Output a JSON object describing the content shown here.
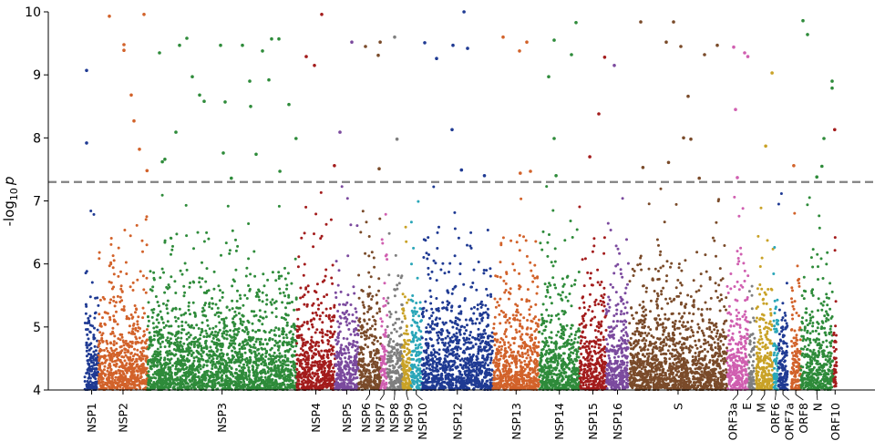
{
  "chart_data": {
    "type": "scatter",
    "title": "",
    "xlabel": "",
    "ylabel": {
      "prefix": "-log",
      "sub": "10",
      "var": "p"
    },
    "xlim": [
      -1160,
      31175
    ],
    "ylim": [
      4,
      10
    ],
    "yticks": [
      "4",
      "5",
      "6",
      "7",
      "8",
      "9",
      "10"
    ],
    "grid": false,
    "legend": "none",
    "threshold": {
      "value": 7.3,
      "style": "dashed",
      "color": "#808080"
    },
    "genes": [
      {
        "name": "NSP1",
        "start": 266,
        "end": 805,
        "color": "#1f3a93"
      },
      {
        "name": "NSP2",
        "start": 806,
        "end": 2719,
        "color": "#d2622a"
      },
      {
        "name": "NSP3",
        "start": 2720,
        "end": 8554,
        "color": "#2e8b3a"
      },
      {
        "name": "NSP4",
        "start": 8555,
        "end": 10054,
        "color": "#a31c1c"
      },
      {
        "name": "NSP5",
        "start": 10055,
        "end": 10972,
        "color": "#7b4a9e"
      },
      {
        "name": "NSP6",
        "start": 10973,
        "end": 11842,
        "color": "#7a4b2a"
      },
      {
        "name": "NSP7",
        "start": 11843,
        "end": 12091,
        "color": "#d05fb0"
      },
      {
        "name": "NSP8",
        "start": 12092,
        "end": 12685,
        "color": "#7f7f7f"
      },
      {
        "name": "NSP9",
        "start": 12686,
        "end": 13024,
        "color": "#c9a227"
      },
      {
        "name": "NSP10",
        "start": 13025,
        "end": 13441,
        "color": "#2aa6b8"
      },
      {
        "name": "NSP12",
        "start": 13442,
        "end": 16236,
        "color": "#1f3a93"
      },
      {
        "name": "NSP13",
        "start": 16237,
        "end": 18039,
        "color": "#d2622a"
      },
      {
        "name": "NSP14",
        "start": 18040,
        "end": 19620,
        "color": "#2e8b3a"
      },
      {
        "name": "NSP15",
        "start": 19621,
        "end": 20658,
        "color": "#a31c1c"
      },
      {
        "name": "NSP16",
        "start": 20659,
        "end": 21552,
        "color": "#7b4a9e"
      },
      {
        "name": "S",
        "start": 21563,
        "end": 25384,
        "color": "#7a4b2a"
      },
      {
        "name": "ORF3a",
        "start": 25393,
        "end": 26220,
        "color": "#d05fb0"
      },
      {
        "name": "E",
        "start": 26245,
        "end": 26472,
        "color": "#7f7f7f"
      },
      {
        "name": "M",
        "start": 26523,
        "end": 27191,
        "color": "#c9a227"
      },
      {
        "name": "ORF6",
        "start": 27202,
        "end": 27387,
        "color": "#2aa6b8"
      },
      {
        "name": "ORF7a",
        "start": 27394,
        "end": 27759,
        "color": "#1f3a93"
      },
      {
        "name": "ORF8",
        "start": 27894,
        "end": 28259,
        "color": "#d2622a"
      },
      {
        "name": "N",
        "start": 28274,
        "end": 29533,
        "color": "#2e8b3a"
      },
      {
        "name": "ORF10",
        "start": 29558,
        "end": 29674,
        "color": "#a31c1c"
      }
    ],
    "background_points": {
      "density_per_base": 0.34,
      "min": 4.0,
      "max_below_threshold": 7.25,
      "decay": 0.55
    },
    "significant_points": [
      {
        "gene": "NSP1",
        "x": 337,
        "y": 9.07
      },
      {
        "gene": "NSP1",
        "x": 337,
        "y": 7.92
      },
      {
        "gene": "NSP2",
        "x": 1229,
        "y": 9.93
      },
      {
        "gene": "NSP2",
        "x": 2583,
        "y": 9.96
      },
      {
        "gene": "NSP2",
        "x": 1799,
        "y": 9.48
      },
      {
        "gene": "NSP2",
        "x": 1799,
        "y": 9.39
      },
      {
        "gene": "NSP2",
        "x": 2084,
        "y": 8.68
      },
      {
        "gene": "NSP2",
        "x": 2191,
        "y": 8.27
      },
      {
        "gene": "NSP2",
        "x": 2405,
        "y": 7.82
      },
      {
        "gene": "NSP2",
        "x": 2700,
        "y": 7.48
      },
      {
        "gene": "NSP3",
        "x": 3189,
        "y": 9.35
      },
      {
        "gene": "NSP3",
        "x": 3973,
        "y": 9.47
      },
      {
        "gene": "NSP3",
        "x": 4259,
        "y": 9.58
      },
      {
        "gene": "NSP3",
        "x": 4473,
        "y": 8.97
      },
      {
        "gene": "NSP3",
        "x": 4758,
        "y": 8.68
      },
      {
        "gene": "NSP3",
        "x": 4936,
        "y": 8.58
      },
      {
        "gene": "NSP3",
        "x": 5578,
        "y": 9.47
      },
      {
        "gene": "NSP3",
        "x": 5756,
        "y": 8.57
      },
      {
        "gene": "NSP3",
        "x": 6433,
        "y": 9.47
      },
      {
        "gene": "NSP3",
        "x": 6719,
        "y": 8.9
      },
      {
        "gene": "NSP3",
        "x": 6754,
        "y": 8.5
      },
      {
        "gene": "NSP3",
        "x": 7218,
        "y": 9.38
      },
      {
        "gene": "NSP3",
        "x": 7467,
        "y": 8.92
      },
      {
        "gene": "NSP3",
        "x": 7574,
        "y": 9.57
      },
      {
        "gene": "NSP3",
        "x": 7859,
        "y": 9.57
      },
      {
        "gene": "NSP3",
        "x": 8251,
        "y": 8.53
      },
      {
        "gene": "NSP3",
        "x": 3831,
        "y": 8.09
      },
      {
        "gene": "NSP3",
        "x": 5685,
        "y": 7.76
      },
      {
        "gene": "NSP3",
        "x": 6968,
        "y": 7.74
      },
      {
        "gene": "NSP3",
        "x": 8530,
        "y": 7.99
      },
      {
        "gene": "NSP3",
        "x": 3300,
        "y": 7.62
      },
      {
        "gene": "NSP3",
        "x": 3400,
        "y": 7.66
      },
      {
        "gene": "NSP3",
        "x": 7900,
        "y": 7.47
      },
      {
        "gene": "NSP3",
        "x": 6000,
        "y": 7.36
      },
      {
        "gene": "NSP4",
        "x": 9535,
        "y": 9.96
      },
      {
        "gene": "NSP4",
        "x": 8929,
        "y": 9.29
      },
      {
        "gene": "NSP4",
        "x": 9250,
        "y": 9.15
      },
      {
        "gene": "NSP4",
        "x": 10030,
        "y": 7.56
      },
      {
        "gene": "NSP5",
        "x": 10711,
        "y": 9.52
      },
      {
        "gene": "NSP5",
        "x": 10248,
        "y": 8.09
      },
      {
        "gene": "NSP6",
        "x": 11246,
        "y": 9.45
      },
      {
        "gene": "NSP6",
        "x": 11745,
        "y": 9.31
      },
      {
        "gene": "NSP6",
        "x": 11820,
        "y": 9.52
      },
      {
        "gene": "NSP6",
        "x": 11780,
        "y": 7.51
      },
      {
        "gene": "NSP8",
        "x": 12387,
        "y": 9.6
      },
      {
        "gene": "NSP8",
        "x": 12480,
        "y": 7.98
      },
      {
        "gene": "NSP12",
        "x": 13564,
        "y": 9.51
      },
      {
        "gene": "NSP12",
        "x": 14027,
        "y": 9.26
      },
      {
        "gene": "NSP12",
        "x": 14669,
        "y": 9.47
      },
      {
        "gene": "NSP12",
        "x": 14633,
        "y": 8.13
      },
      {
        "gene": "NSP12",
        "x": 15100,
        "y": 10.0
      },
      {
        "gene": "NSP12",
        "x": 15240,
        "y": 9.42
      },
      {
        "gene": "NSP12",
        "x": 15000,
        "y": 7.49
      },
      {
        "gene": "NSP12",
        "x": 15900,
        "y": 7.4
      },
      {
        "gene": "NSP13",
        "x": 16629,
        "y": 9.6
      },
      {
        "gene": "NSP13",
        "x": 17271,
        "y": 9.38
      },
      {
        "gene": "NSP13",
        "x": 17556,
        "y": 9.52
      },
      {
        "gene": "NSP13",
        "x": 17300,
        "y": 7.44
      },
      {
        "gene": "NSP13",
        "x": 17700,
        "y": 7.47
      },
      {
        "gene": "NSP14",
        "x": 18626,
        "y": 9.55
      },
      {
        "gene": "NSP14",
        "x": 19482,
        "y": 9.83
      },
      {
        "gene": "NSP14",
        "x": 19304,
        "y": 9.32
      },
      {
        "gene": "NSP14",
        "x": 18412,
        "y": 8.97
      },
      {
        "gene": "NSP14",
        "x": 18626,
        "y": 7.99
      },
      {
        "gene": "NSP14",
        "x": 18700,
        "y": 7.4
      },
      {
        "gene": "NSP15",
        "x": 20600,
        "y": 9.28
      },
      {
        "gene": "NSP15",
        "x": 20372,
        "y": 8.38
      },
      {
        "gene": "NSP15",
        "x": 20020,
        "y": 7.7
      },
      {
        "gene": "NSP16",
        "x": 20980,
        "y": 9.15
      },
      {
        "gene": "S",
        "x": 22014,
        "y": 9.84
      },
      {
        "gene": "S",
        "x": 23297,
        "y": 9.84
      },
      {
        "gene": "S",
        "x": 23011,
        "y": 9.52
      },
      {
        "gene": "S",
        "x": 23582,
        "y": 9.45
      },
      {
        "gene": "S",
        "x": 24509,
        "y": 9.32
      },
      {
        "gene": "S",
        "x": 25008,
        "y": 9.47
      },
      {
        "gene": "S",
        "x": 23867,
        "y": 8.66
      },
      {
        "gene": "S",
        "x": 23690,
        "y": 8.0
      },
      {
        "gene": "S",
        "x": 23975,
        "y": 7.98
      },
      {
        "gene": "S",
        "x": 22100,
        "y": 7.53
      },
      {
        "gene": "S",
        "x": 23100,
        "y": 7.61
      },
      {
        "gene": "S",
        "x": 24300,
        "y": 7.36
      },
      {
        "gene": "ORF3a",
        "x": 25650,
        "y": 9.44
      },
      {
        "gene": "ORF3a",
        "x": 26078,
        "y": 9.35
      },
      {
        "gene": "ORF3a",
        "x": 26200,
        "y": 9.29
      },
      {
        "gene": "ORF3a",
        "x": 25720,
        "y": 8.45
      },
      {
        "gene": "ORF3a",
        "x": 25790,
        "y": 7.37
      },
      {
        "gene": "M",
        "x": 27150,
        "y": 9.03
      },
      {
        "gene": "M",
        "x": 26900,
        "y": 7.87
      },
      {
        "gene": "ORF8",
        "x": 28000,
        "y": 7.56
      },
      {
        "gene": "N",
        "x": 28357,
        "y": 9.86
      },
      {
        "gene": "N",
        "x": 28536,
        "y": 9.64
      },
      {
        "gene": "N",
        "x": 29499,
        "y": 8.9
      },
      {
        "gene": "N",
        "x": 29499,
        "y": 8.79
      },
      {
        "gene": "N",
        "x": 29180,
        "y": 7.99
      },
      {
        "gene": "N",
        "x": 29100,
        "y": 7.55
      },
      {
        "gene": "N",
        "x": 28900,
        "y": 7.38
      },
      {
        "gene": "ORF10",
        "x": 29600,
        "y": 8.13
      }
    ]
  }
}
